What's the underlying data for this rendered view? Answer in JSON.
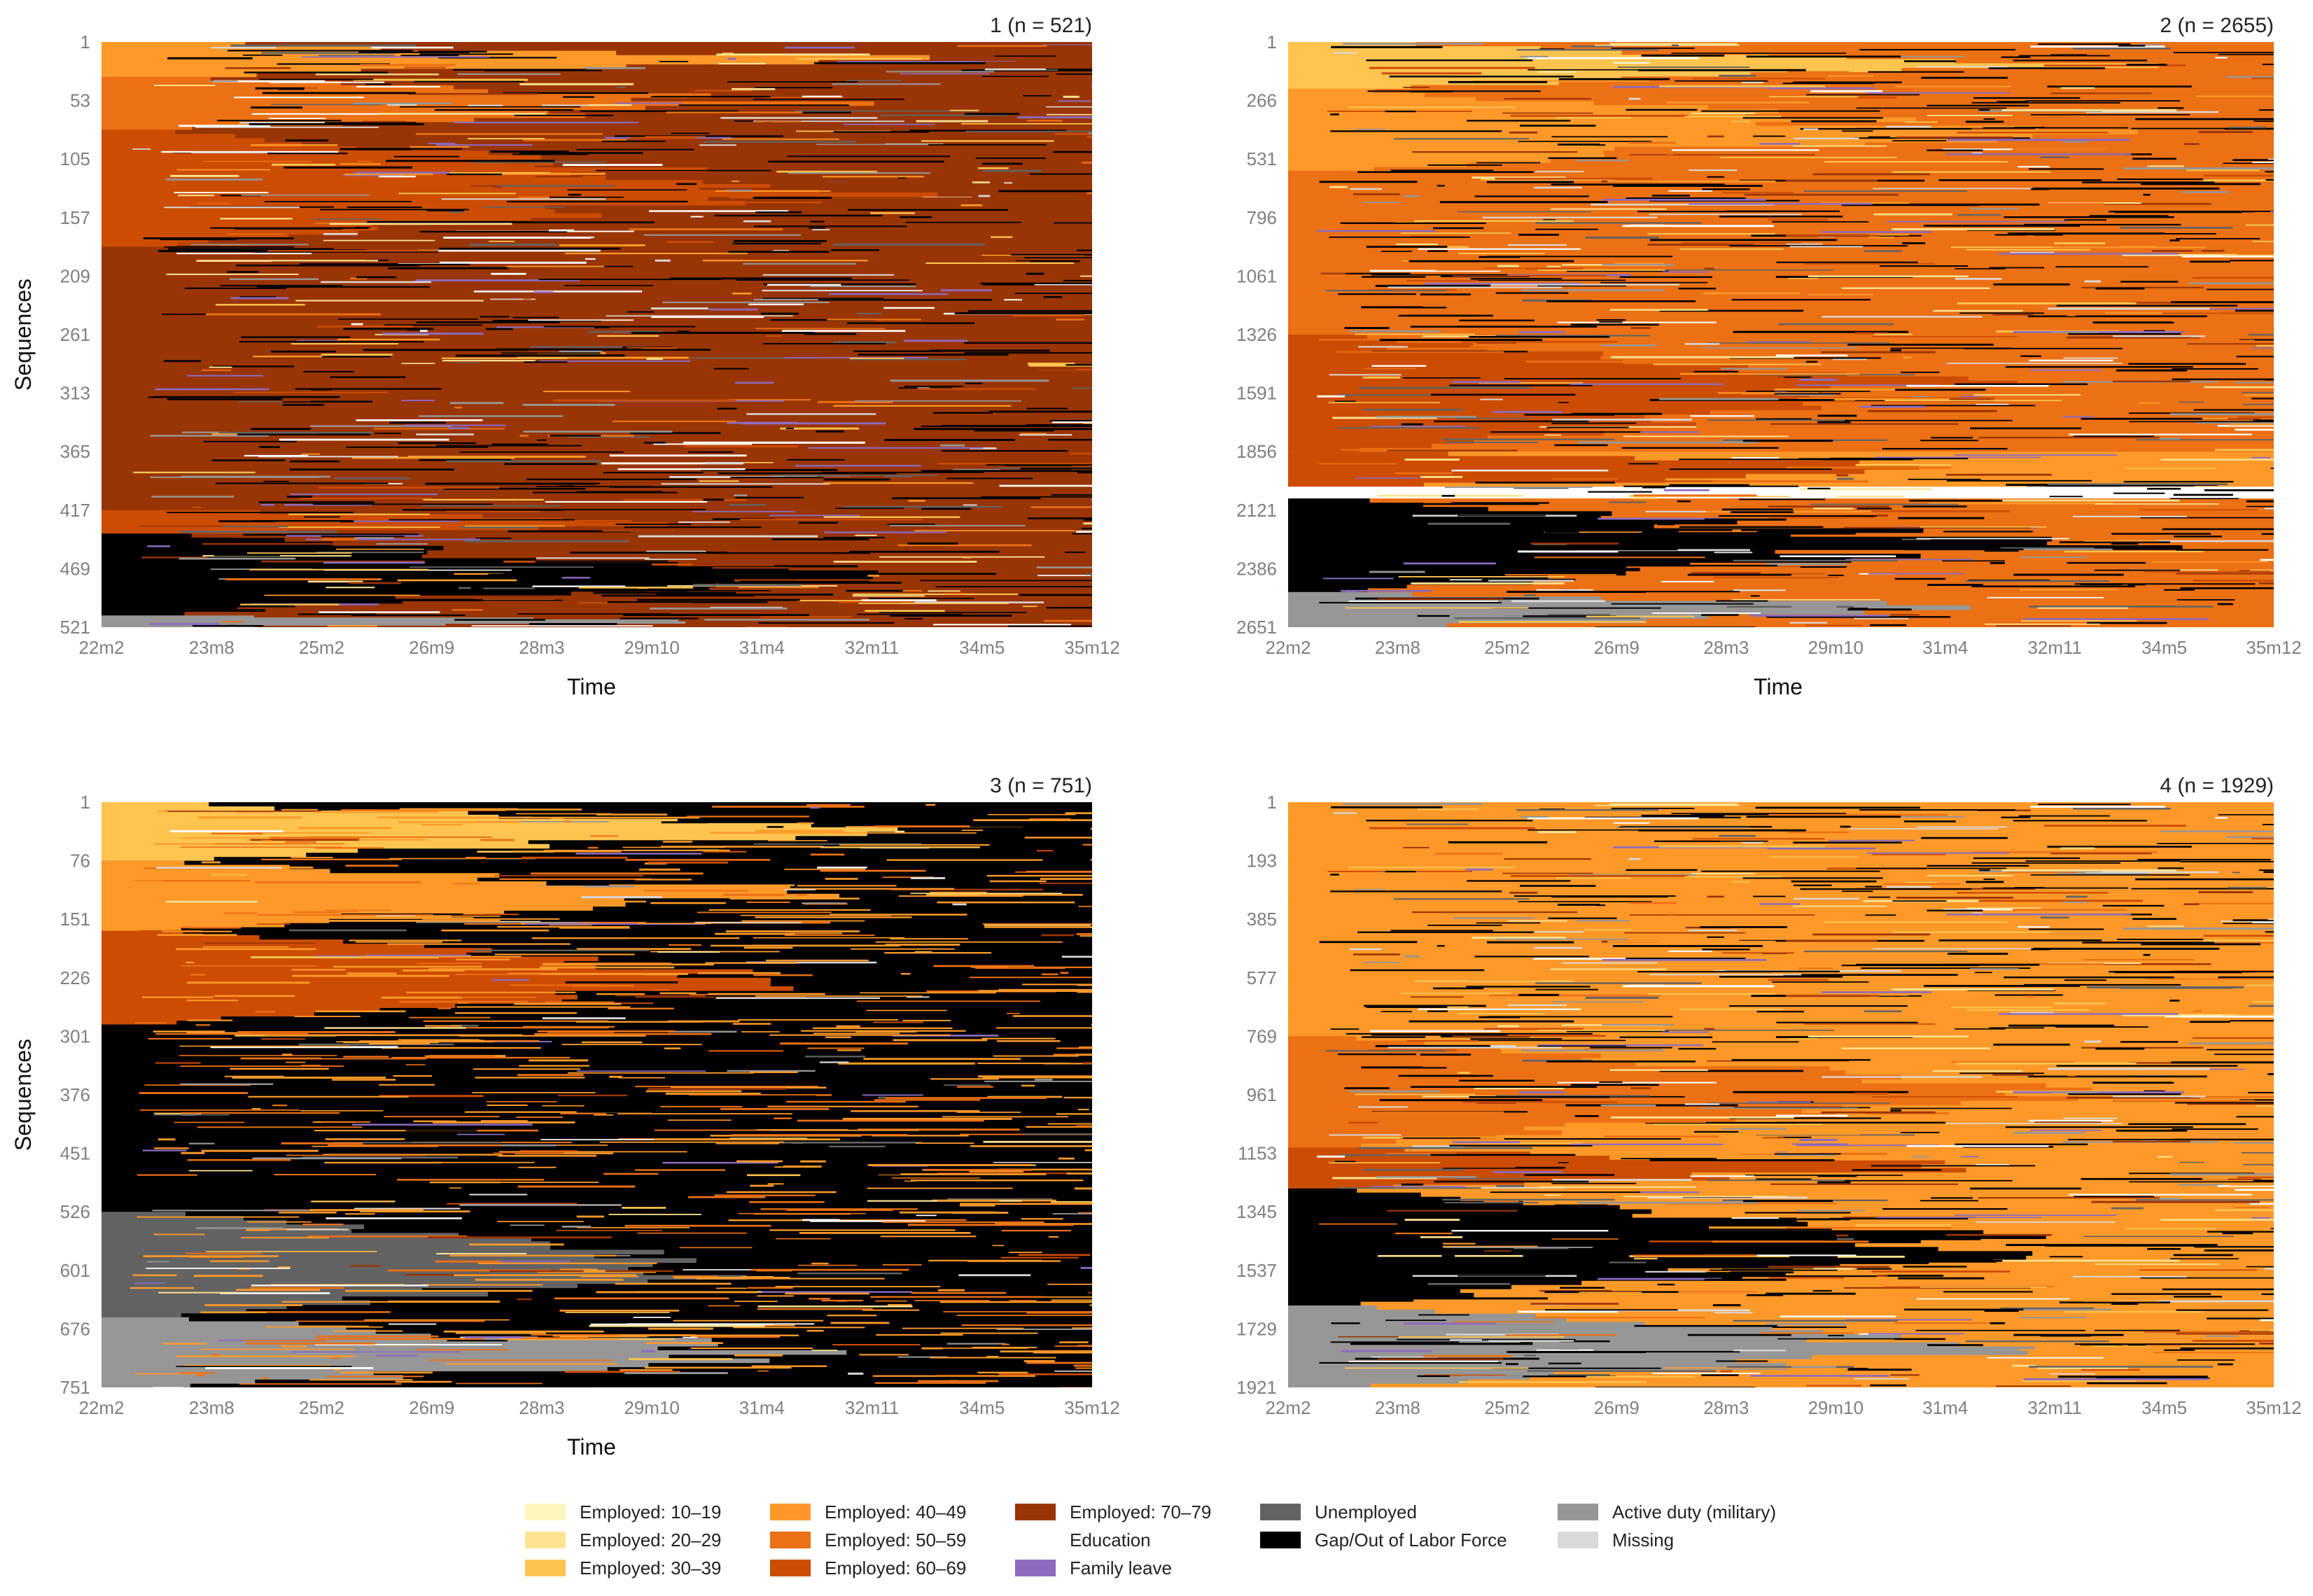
{
  "chart_data": [
    {
      "type": "heatmap",
      "subtype": "sequence index plot",
      "title": "1 (n = 521)",
      "xlabel": "Time",
      "ylabel": "Sequences",
      "x_ticks": [
        "22m2",
        "23m8",
        "25m2",
        "26m9",
        "28m3",
        "29m10",
        "31m4",
        "32m11",
        "34m5",
        "35m12"
      ],
      "y_ticks": [
        "1",
        "53",
        "105",
        "157",
        "209",
        "261",
        "313",
        "365",
        "417",
        "469",
        "521"
      ],
      "n": 521,
      "bands": [
        {
          "from": 0.0,
          "to": 0.06,
          "start": "Employed: 40–49",
          "end": "Employed: 70–79"
        },
        {
          "from": 0.06,
          "to": 0.15,
          "start": "Employed: 50–59",
          "end": "Employed: 70–79"
        },
        {
          "from": 0.15,
          "to": 0.35,
          "start": "Employed: 60–69",
          "end": "Employed: 70–79"
        },
        {
          "from": 0.35,
          "to": 0.8,
          "start": "Employed: 70–79",
          "end": "Employed: 70–79"
        },
        {
          "from": 0.8,
          "to": 0.84,
          "start": "Employed: 60–69",
          "end": "Employed: 70–79"
        },
        {
          "from": 0.84,
          "to": 0.98,
          "start": "Gap/Out of Labor Force",
          "end": "Employed: 70–79"
        },
        {
          "from": 0.98,
          "to": 1.0,
          "start": "Active duty (military)",
          "end": "Employed: 70–79"
        }
      ],
      "dominant_state": "Employed: 70–79"
    },
    {
      "type": "heatmap",
      "subtype": "sequence index plot",
      "title": "2 (n = 2655)",
      "xlabel": "Time",
      "ylabel": "",
      "x_ticks": [
        "22m2",
        "23m8",
        "25m2",
        "26m9",
        "28m3",
        "29m10",
        "31m4",
        "32m11",
        "34m5",
        "35m12"
      ],
      "y_ticks": [
        "1",
        "266",
        "531",
        "796",
        "1061",
        "1326",
        "1591",
        "1856",
        "2121",
        "2386",
        "2651"
      ],
      "n": 2655,
      "bands": [
        {
          "from": 0.0,
          "to": 0.08,
          "start": "Employed: 30–39",
          "end": "Employed: 50–59"
        },
        {
          "from": 0.08,
          "to": 0.22,
          "start": "Employed: 40–49",
          "end": "Employed: 50–59"
        },
        {
          "from": 0.22,
          "to": 0.5,
          "start": "Employed: 50–59",
          "end": "Employed: 50–59"
        },
        {
          "from": 0.5,
          "to": 0.7,
          "start": "Employed: 60–69",
          "end": "Employed: 50–59"
        },
        {
          "from": 0.7,
          "to": 0.76,
          "start": "Employed: 60–69",
          "end": "Employed: 40–49"
        },
        {
          "from": 0.76,
          "to": 0.78,
          "start": "Education",
          "end": "Education"
        },
        {
          "from": 0.78,
          "to": 0.94,
          "start": "Gap/Out of Labor Force",
          "end": "Employed: 50–59"
        },
        {
          "from": 0.94,
          "to": 1.0,
          "start": "Active duty (military)",
          "end": "Employed: 50–59"
        }
      ],
      "dominant_state": "Employed: 50–59"
    },
    {
      "type": "heatmap",
      "subtype": "sequence index plot",
      "title": "3 (n = 751)",
      "xlabel": "Time",
      "ylabel": "Sequences",
      "x_ticks": [
        "22m2",
        "23m8",
        "25m2",
        "26m9",
        "28m3",
        "29m10",
        "31m4",
        "32m11",
        "34m5",
        "35m12"
      ],
      "y_ticks": [
        "1",
        "76",
        "151",
        "226",
        "301",
        "376",
        "451",
        "526",
        "601",
        "676",
        "751"
      ],
      "n": 751,
      "bands": [
        {
          "from": 0.0,
          "to": 0.1,
          "start": "Employed: 30–39",
          "end": "Gap/Out of Labor Force"
        },
        {
          "from": 0.1,
          "to": 0.22,
          "start": "Employed: 40–49",
          "end": "Gap/Out of Labor Force"
        },
        {
          "from": 0.22,
          "to": 0.38,
          "start": "Employed: 60–69",
          "end": "Gap/Out of Labor Force"
        },
        {
          "from": 0.38,
          "to": 0.7,
          "start": "Gap/Out of Labor Force",
          "end": "Gap/Out of Labor Force"
        },
        {
          "from": 0.7,
          "to": 0.88,
          "start": "Unemployed",
          "end": "Gap/Out of Labor Force"
        },
        {
          "from": 0.88,
          "to": 1.0,
          "start": "Active duty (military)",
          "end": "Gap/Out of Labor Force"
        }
      ],
      "dominant_state": "Gap/Out of Labor Force"
    },
    {
      "type": "heatmap",
      "subtype": "sequence index plot",
      "title": "4 (n = 1929)",
      "xlabel": "",
      "ylabel": "",
      "x_ticks": [
        "22m2",
        "23m8",
        "25m2",
        "26m9",
        "28m3",
        "29m10",
        "31m4",
        "32m11",
        "34m5",
        "35m12"
      ],
      "y_ticks": [
        "1",
        "193",
        "385",
        "577",
        "769",
        "961",
        "1153",
        "1345",
        "1537",
        "1729",
        "1921"
      ],
      "n": 1929,
      "bands": [
        {
          "from": 0.0,
          "to": 0.4,
          "start": "Employed: 40–49",
          "end": "Employed: 40–49"
        },
        {
          "from": 0.4,
          "to": 0.59,
          "start": "Employed: 50–59",
          "end": "Employed: 40–49"
        },
        {
          "from": 0.59,
          "to": 0.66,
          "start": "Employed: 60–69",
          "end": "Employed: 40–49"
        },
        {
          "from": 0.66,
          "to": 0.86,
          "start": "Gap/Out of Labor Force",
          "end": "Employed: 40–49"
        },
        {
          "from": 0.86,
          "to": 1.0,
          "start": "Active duty (military)",
          "end": "Employed: 40–49"
        }
      ],
      "dominant_state": "Employed: 40–49"
    }
  ],
  "legend": {
    "placement": "bottom-center",
    "items": [
      {
        "label": "Employed: 10–19",
        "color": "#FFF5C0"
      },
      {
        "label": "Employed: 20–29",
        "color": "#FEE391"
      },
      {
        "label": "Employed: 30–39",
        "color": "#FEC44F"
      },
      {
        "label": "Employed: 40–49",
        "color": "#FE9929"
      },
      {
        "label": "Employed: 50–59",
        "color": "#EC7014"
      },
      {
        "label": "Employed: 60–69",
        "color": "#CC4C02"
      },
      {
        "label": "Employed: 70–79",
        "color": "#993404"
      },
      {
        "label": "Education",
        "color": "#FFFFFF"
      },
      {
        "label": "Family leave",
        "color": "#8C6BC0"
      },
      {
        "label": "Unemployed",
        "color": "#636363"
      },
      {
        "label": "Gap/Out of Labor Force",
        "color": "#000000"
      },
      {
        "label": "Active duty (military)",
        "color": "#969696"
      },
      {
        "label": "Missing",
        "color": "#D9D9D9"
      }
    ]
  }
}
